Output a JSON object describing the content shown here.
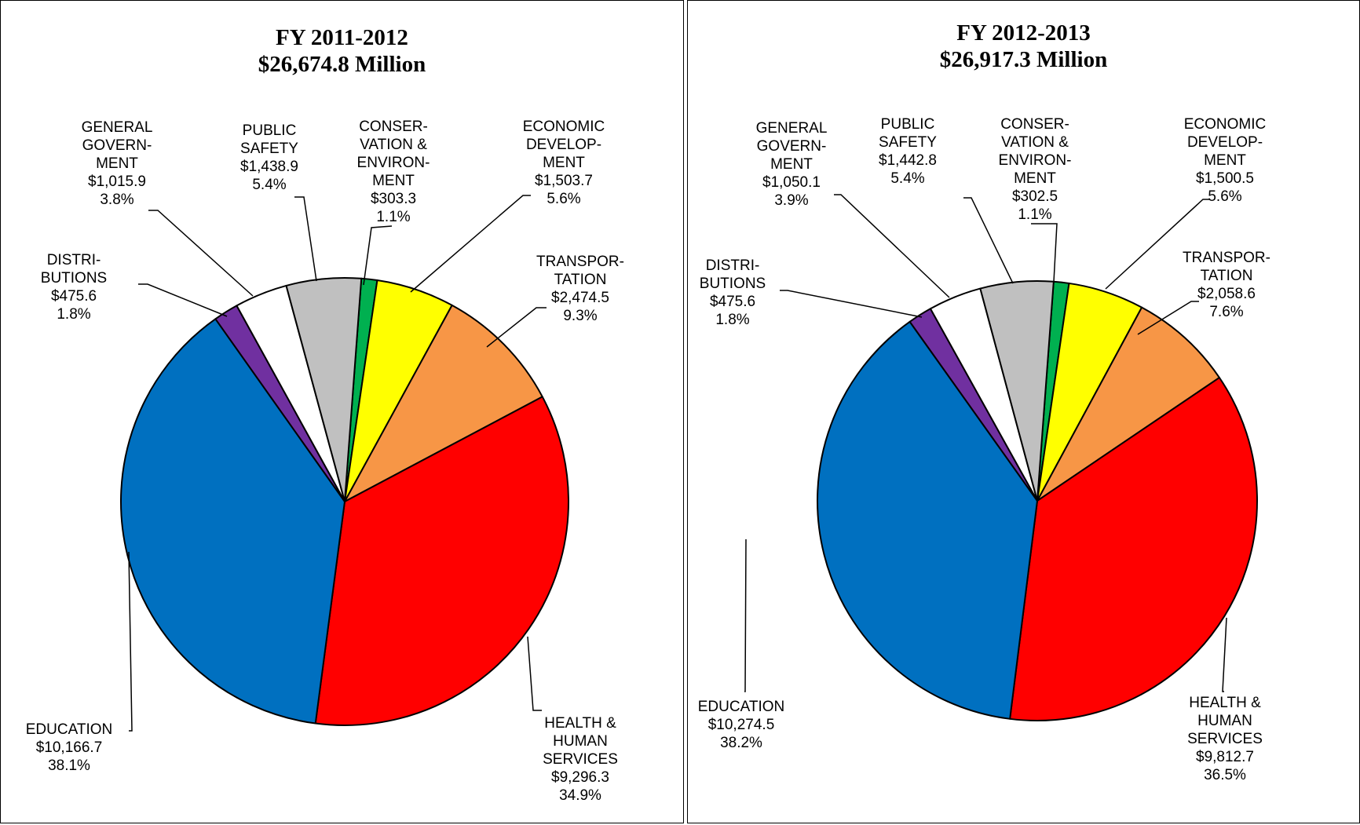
{
  "chart_data": [
    {
      "type": "pie",
      "title": "FY 2011-2012",
      "subtitle": "$26,674.8 Million",
      "slices": [
        {
          "name": "CONSER- VATION & ENVIRON- MENT",
          "lines": [
            "CONSER-",
            "VATION &",
            "ENVIRON-",
            "MENT",
            "$303.3",
            "1.1%"
          ],
          "value": 303.3,
          "percent": 1.1,
          "color": "#00B050"
        },
        {
          "name": "ECONOMIC DEVELOP- MENT",
          "lines": [
            "ECONOMIC",
            "DEVELOP-",
            "MENT",
            "$1,503.7",
            "5.6%"
          ],
          "value": 1503.7,
          "percent": 5.6,
          "color": "#FFFF00"
        },
        {
          "name": "TRANSPOR- TATION",
          "lines": [
            "TRANSPOR-",
            "TATION",
            "$2,474.5",
            "9.3%"
          ],
          "value": 2474.5,
          "percent": 9.3,
          "color": "#F79646"
        },
        {
          "name": "HEALTH & HUMAN SERVICES",
          "lines": [
            "HEALTH &",
            "HUMAN",
            "SERVICES",
            "$9,296.3",
            "34.9%"
          ],
          "value": 9296.3,
          "percent": 34.9,
          "color": "#FF0000"
        },
        {
          "name": "EDUCATION",
          "lines": [
            "EDUCATION",
            "$10,166.7",
            "38.1%"
          ],
          "value": 10166.7,
          "percent": 38.1,
          "color": "#0070C0"
        },
        {
          "name": "DISTRI- BUTIONS",
          "lines": [
            "DISTRI-",
            "BUTIONS",
            "$475.6",
            "1.8%"
          ],
          "value": 475.6,
          "percent": 1.8,
          "color": "#7030A0"
        },
        {
          "name": "GENERAL GOVERN- MENT",
          "lines": [
            "GENERAL",
            "GOVERN-",
            "MENT",
            "$1,015.9",
            "3.8%"
          ],
          "value": 1015.9,
          "percent": 3.8,
          "color": "#FFFFFF"
        },
        {
          "name": "PUBLIC SAFETY",
          "lines": [
            "PUBLIC",
            "SAFETY",
            "$1,438.9",
            "5.4%"
          ],
          "value": 1438.9,
          "percent": 5.4,
          "color": "#C0C0C0"
        }
      ]
    },
    {
      "type": "pie",
      "title": "FY 2012-2013",
      "subtitle": "$26,917.3 Million",
      "slices": [
        {
          "name": "CONSER- VATION & ENVIRON- MENT",
          "lines": [
            "CONSER-",
            "VATION &",
            "ENVIRON-",
            "MENT",
            "$302.5",
            "1.1%"
          ],
          "value": 302.5,
          "percent": 1.1,
          "color": "#00B050"
        },
        {
          "name": "ECONOMIC DEVELOP- MENT",
          "lines": [
            "ECONOMIC",
            "DEVELOP-",
            "MENT",
            "$1,500.5",
            "5.6%"
          ],
          "value": 1500.5,
          "percent": 5.6,
          "color": "#FFFF00"
        },
        {
          "name": "TRANSPOR- TATION",
          "lines": [
            "TRANSPOR-",
            "TATION",
            "$2,058.6",
            "7.6%"
          ],
          "value": 2058.6,
          "percent": 7.6,
          "color": "#F79646"
        },
        {
          "name": "HEALTH & HUMAN SERVICES",
          "lines": [
            "HEALTH &",
            "HUMAN",
            "SERVICES",
            "$9,812.7",
            "36.5%"
          ],
          "value": 9812.7,
          "percent": 36.5,
          "color": "#FF0000"
        },
        {
          "name": "EDUCATION",
          "lines": [
            "EDUCATION",
            "$10,274.5",
            "38.2%"
          ],
          "value": 10274.5,
          "percent": 38.2,
          "color": "#0070C0"
        },
        {
          "name": "DISTRI- BUTIONS",
          "lines": [
            "DISTRI-",
            "BUTIONS",
            "$475.6",
            "1.8%"
          ],
          "value": 475.6,
          "percent": 1.8,
          "color": "#7030A0"
        },
        {
          "name": "GENERAL GOVERN- MENT",
          "lines": [
            "GENERAL",
            "GOVERN-",
            "MENT",
            "$1,050.1",
            "3.9%"
          ],
          "value": 1050.1,
          "percent": 3.9,
          "color": "#FFFFFF"
        },
        {
          "name": "PUBLIC SAFETY",
          "lines": [
            "PUBLIC",
            "SAFETY",
            "$1,442.8",
            "5.4%"
          ],
          "value": 1442.8,
          "percent": 5.4,
          "color": "#C0C0C0"
        }
      ]
    }
  ]
}
